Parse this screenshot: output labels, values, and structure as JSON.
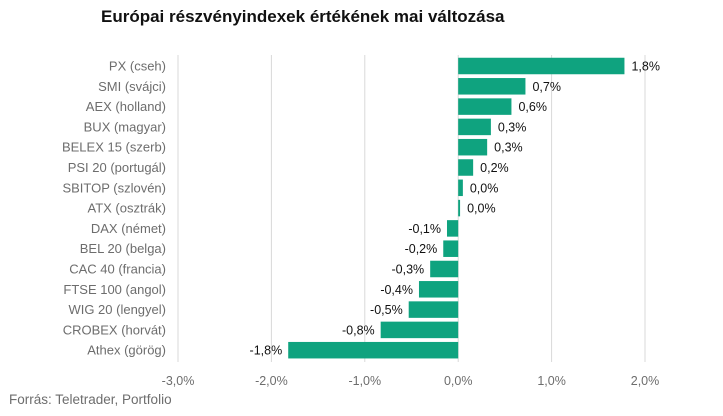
{
  "title": "Európai részvényindexek értékének mai változása",
  "source": "Forrás: Teletrader, Portfolio",
  "colors": {
    "bar": "#0fa37f",
    "grid": "#d9d9d9",
    "text": "#6d6d6d"
  },
  "chart_data": {
    "type": "bar",
    "orientation": "horizontal",
    "title": "Európai részvényindexek értékének mai változása",
    "categories": [
      "PX (cseh)",
      "SMI (svájci)",
      "AEX (holland)",
      "BUX (magyar)",
      "BELEX 15 (szerb)",
      "PSI 20 (portugál)",
      "SBITOP (szlovén)",
      "ATX (osztrák)",
      "DAX (német)",
      "BEL 20 (belga)",
      "CAC 40 (francia)",
      "FTSE 100 (angol)",
      "WIG 20 (lengyel)",
      "CROBEX (horvát)",
      "Athex (görög)"
    ],
    "values": [
      1.78,
      0.72,
      0.57,
      0.35,
      0.31,
      0.16,
      0.05,
      0.02,
      -0.12,
      -0.16,
      -0.3,
      -0.42,
      -0.53,
      -0.83,
      -1.82
    ],
    "value_labels": [
      "1,8%",
      "0,7%",
      "0,6%",
      "0,3%",
      "0,3%",
      "0,2%",
      "0,0%",
      "0,0%",
      "-0,1%",
      "-0,2%",
      "-0,3%",
      "-0,4%",
      "-0,5%",
      "-0,8%",
      "-1,8%"
    ],
    "xlim": [
      -3.0,
      2.0
    ],
    "xticks": [
      -3,
      -2,
      -1,
      0,
      1,
      2
    ],
    "xtick_labels": [
      "-3,0%",
      "-2,0%",
      "-1,0%",
      "0,0%",
      "1,0%",
      "2,0%"
    ],
    "grid": true,
    "legend": "none"
  }
}
